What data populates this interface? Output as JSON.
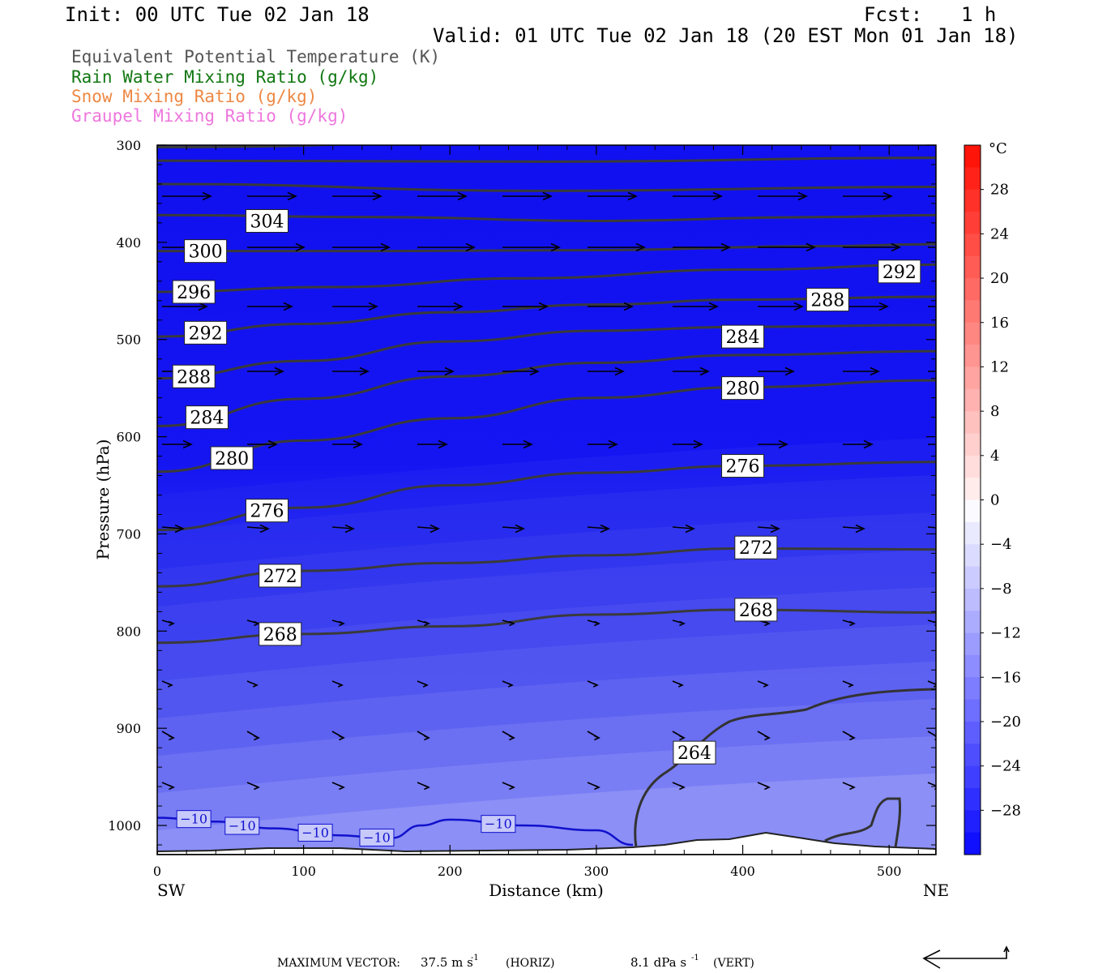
{
  "header": {
    "init": "Init: 00 UTC Tue 02 Jan 18",
    "fcst_label": "Fcst:",
    "fcst_value": "1 h",
    "valid": "Valid: 01 UTC Tue 02 Jan 18 (20 EST Mon 01 Jan 18)"
  },
  "legend": [
    {
      "text": "Equivalent Potential Temperature (K)",
      "color": "#555555"
    },
    {
      "text": "Rain Water Mixing Ratio (g/kg)",
      "color": "#117711"
    },
    {
      "text": "Snow Mixing Ratio (g/kg)",
      "color": "#ee8844"
    },
    {
      "text": "Graupel Mixing Ratio (g/kg)",
      "color": "#ee77dd"
    }
  ],
  "footer": {
    "max_vector_label": "MAXIMUM VECTOR:",
    "horiz_value": "37.5 m s",
    "horiz_unit": "(HORIZ)",
    "vert_value": "8.1 dPa s",
    "vert_unit": "(VERT)",
    "exponent": "-1"
  },
  "chart_data": {
    "type": "contour",
    "xlabel": "Distance (km)",
    "ylabel": "Pressure (hPa)",
    "xlim": [
      0,
      532
    ],
    "ylim": [
      300,
      1030
    ],
    "x_ticks": [
      0,
      100,
      200,
      300,
      400,
      500
    ],
    "y_ticks": [
      300,
      400,
      500,
      600,
      700,
      800,
      900,
      1000
    ],
    "x_end_labels": {
      "left": "SW",
      "right": "NE"
    },
    "colorbar": {
      "unit": "°C",
      "labels": [
        "28",
        "24",
        "20",
        "16",
        "12",
        "8",
        "4",
        "0",
        "−4",
        "−8",
        "−12",
        "−16",
        "−20",
        "−24",
        "−28"
      ],
      "top_color": "#ff1a00",
      "bottom_color": "#1010ff"
    },
    "theta_e_contours": [
      {
        "label": "304",
        "points": [
          [
            0,
            372
          ],
          [
            150,
            374
          ],
          [
            300,
            378
          ],
          [
            450,
            374
          ],
          [
            532,
            372
          ]
        ]
      },
      {
        "label": "300",
        "points": [
          [
            0,
            409
          ],
          [
            150,
            409
          ],
          [
            300,
            408
          ],
          [
            450,
            404
          ],
          [
            532,
            402
          ]
        ]
      },
      {
        "label": "296",
        "points": [
          [
            0,
            451
          ],
          [
            120,
            446
          ],
          [
            250,
            437
          ],
          [
            400,
            428
          ],
          [
            532,
            423
          ]
        ]
      },
      {
        "label": "292",
        "points": [
          [
            0,
            497
          ],
          [
            100,
            484
          ],
          [
            200,
            472
          ],
          [
            300,
            464
          ],
          [
            400,
            459
          ],
          [
            532,
            456
          ]
        ]
      },
      {
        "label": "288",
        "points": [
          [
            0,
            540
          ],
          [
            100,
            522
          ],
          [
            200,
            502
          ],
          [
            300,
            491
          ],
          [
            400,
            487
          ],
          [
            532,
            485
          ]
        ]
      },
      {
        "label": "284",
        "points": [
          [
            0,
            589
          ],
          [
            100,
            561
          ],
          [
            200,
            538
          ],
          [
            300,
            524
          ],
          [
            400,
            516
          ],
          [
            532,
            512
          ]
        ]
      },
      {
        "label": "280",
        "points": [
          [
            0,
            636
          ],
          [
            100,
            604
          ],
          [
            200,
            581
          ],
          [
            300,
            560
          ],
          [
            400,
            549
          ],
          [
            532,
            542
          ]
        ]
      },
      {
        "label": "276",
        "points": [
          [
            0,
            696
          ],
          [
            100,
            673
          ],
          [
            200,
            650
          ],
          [
            300,
            637
          ],
          [
            400,
            630
          ],
          [
            532,
            626
          ]
        ]
      },
      {
        "label": "272",
        "points": [
          [
            0,
            754
          ],
          [
            100,
            738
          ],
          [
            200,
            730
          ],
          [
            300,
            722
          ],
          [
            400,
            715
          ],
          [
            532,
            716
          ]
        ]
      },
      {
        "label": "268",
        "points": [
          [
            0,
            812
          ],
          [
            100,
            803
          ],
          [
            200,
            795
          ],
          [
            300,
            783
          ],
          [
            400,
            778
          ],
          [
            532,
            781
          ]
        ]
      }
    ],
    "contour_labels": [
      {
        "text": "304",
        "x": 75,
        "p": 378
      },
      {
        "text": "300",
        "x": 33,
        "p": 409
      },
      {
        "text": "296",
        "x": 25,
        "p": 451
      },
      {
        "text": "292",
        "x": 33,
        "p": 493
      },
      {
        "text": "292",
        "x": 507,
        "p": 430
      },
      {
        "text": "288",
        "x": 25,
        "p": 538
      },
      {
        "text": "288",
        "x": 458,
        "p": 459
      },
      {
        "text": "284",
        "x": 34,
        "p": 580
      },
      {
        "text": "284",
        "x": 400,
        "p": 497
      },
      {
        "text": "280",
        "x": 51,
        "p": 622
      },
      {
        "text": "280",
        "x": 400,
        "p": 550
      },
      {
        "text": "276",
        "x": 75,
        "p": 676
      },
      {
        "text": "276",
        "x": 400,
        "p": 630
      },
      {
        "text": "272",
        "x": 84,
        "p": 743
      },
      {
        "text": "272",
        "x": 409,
        "p": 714
      },
      {
        "text": "268",
        "x": 84,
        "p": 803
      },
      {
        "text": "268",
        "x": 409,
        "p": 778
      },
      {
        "text": "264",
        "x": 367,
        "p": 925
      }
    ],
    "temperature_contour": {
      "label": "−10",
      "color": "#1111cc",
      "points": [
        [
          0,
          992
        ],
        [
          40,
          996
        ],
        [
          80,
          1003
        ],
        [
          120,
          1010
        ],
        [
          160,
          1013
        ],
        [
          180,
          1000
        ],
        [
          200,
          994
        ],
        [
          250,
          1000
        ],
        [
          300,
          1005
        ],
        [
          325,
          1020
        ]
      ],
      "label_positions": [
        [
          25,
          993
        ],
        [
          58,
          1000
        ],
        [
          108,
          1007
        ],
        [
          150,
          1012
        ],
        [
          233,
          998
        ]
      ]
    }
  }
}
